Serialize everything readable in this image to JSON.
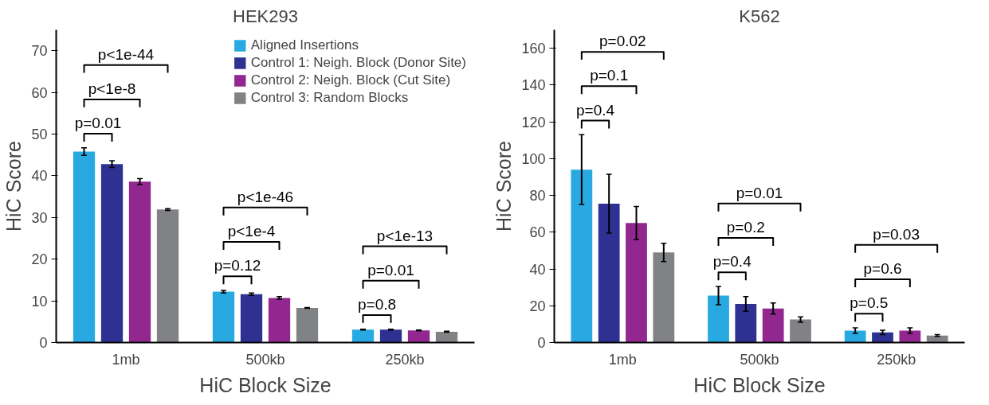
{
  "chart_data": [
    {
      "type": "bar",
      "title": "HEK293",
      "xlabel": "HiC Block Size",
      "ylabel": "HiC Score",
      "categories": [
        "1mb",
        "500kb",
        "250kb"
      ],
      "series": [
        {
          "name": "Aligned Insertions",
          "color": "#29a9e1",
          "values": [
            45.8,
            12.2,
            3.1
          ],
          "errors": [
            0.9,
            0.3,
            0.1
          ]
        },
        {
          "name": "Control 1: Neigh. Block (Donor Site)",
          "color": "#2e3192",
          "values": [
            42.8,
            11.6,
            3.1
          ],
          "errors": [
            0.8,
            0.3,
            0.1
          ]
        },
        {
          "name": "Control 2: Neigh. Block (Cut Site)",
          "color": "#92278f",
          "values": [
            38.6,
            10.7,
            2.9
          ],
          "errors": [
            0.7,
            0.3,
            0.1
          ]
        },
        {
          "name": "Control 3: Random Blocks",
          "color": "#808285",
          "values": [
            31.9,
            8.3,
            2.6
          ],
          "errors": [
            0.2,
            0.1,
            0.1
          ]
        }
      ],
      "ylim": [
        0,
        75
      ],
      "yticks": [
        0,
        10,
        20,
        30,
        40,
        50,
        60,
        70
      ],
      "grid": false,
      "legend": "top right",
      "annotations": [
        "p=0.01",
        "p<1e-8",
        "p<1e-44",
        "p=0.12",
        "p<1e-4",
        "p<1e-46",
        "p=0.8",
        "p=0.01",
        "p<1e-13"
      ]
    },
    {
      "type": "bar",
      "title": "K562",
      "xlabel": "HiC Block Size",
      "ylabel": "HiC Score",
      "categories": [
        "1mb",
        "500kb",
        "250kb"
      ],
      "series": [
        {
          "color": "#29a9e1",
          "values": [
            94,
            25.5,
            6.5
          ],
          "errors": [
            19,
            5,
            1.5
          ]
        },
        {
          "color": "#2e3192",
          "values": [
            75.5,
            21,
            5.5
          ],
          "errors": [
            16,
            4,
            1.2
          ]
        },
        {
          "color": "#92278f",
          "values": [
            65,
            18.5,
            6.5
          ],
          "errors": [
            9,
            3,
            1.5
          ]
        },
        {
          "color": "#808285",
          "values": [
            49,
            12.5,
            3.8
          ],
          "errors": [
            5,
            1.5,
            0.5
          ]
        }
      ],
      "ylim": [
        0,
        170
      ],
      "yticks": [
        0,
        20,
        40,
        60,
        80,
        100,
        120,
        140,
        160
      ],
      "grid": false,
      "annotations": [
        "p=0.4",
        "p=0.1",
        "p=0.02",
        "p=0.4",
        "p=0.2",
        "p=0.01",
        "p=0.5",
        "p=0.6",
        "p=0.03"
      ]
    }
  ]
}
